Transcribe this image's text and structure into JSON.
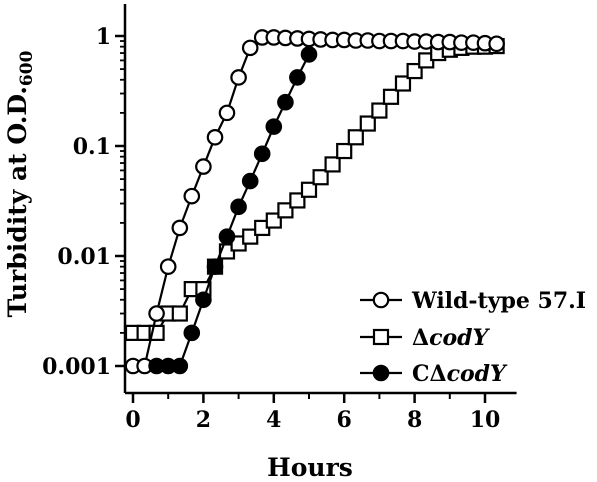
{
  "chart_data": {
    "type": "line",
    "xlabel": "Hours",
    "ylabel_main": "Turbidity at O.D.",
    "ylabel_sub": "600",
    "xlim": [
      0,
      10.5
    ],
    "ylim": [
      0.0007,
      1.5
    ],
    "yscale": "log",
    "grid": false,
    "legend_position": "bottom-right",
    "x_ticks": [
      0,
      2,
      4,
      6,
      8,
      10
    ],
    "x_tick_labels": [
      "0",
      "2",
      "4",
      "6",
      "8",
      "10"
    ],
    "y_ticks": [
      0.001,
      0.01,
      0.1,
      1
    ],
    "y_tick_labels": [
      "0.001",
      "0.01",
      "0.1",
      "1"
    ],
    "series": [
      {
        "name_prefix": "",
        "name_italic": "",
        "name_suffix": "Wild-type 57.I",
        "marker": "circle-open",
        "points": [
          [
            0,
            0.001
          ],
          [
            0.33,
            0.001
          ],
          [
            0.67,
            0.003
          ],
          [
            1.0,
            0.008
          ],
          [
            1.33,
            0.018
          ],
          [
            1.67,
            0.035
          ],
          [
            2.0,
            0.065
          ],
          [
            2.33,
            0.12
          ],
          [
            2.67,
            0.2
          ],
          [
            3.0,
            0.42
          ],
          [
            3.33,
            0.78
          ],
          [
            3.67,
            0.97
          ],
          [
            4.0,
            0.97
          ],
          [
            4.33,
            0.96
          ],
          [
            4.67,
            0.95
          ],
          [
            5.0,
            0.94
          ],
          [
            5.33,
            0.93
          ],
          [
            5.67,
            0.92
          ],
          [
            6.0,
            0.92
          ],
          [
            6.33,
            0.91
          ],
          [
            6.67,
            0.91
          ],
          [
            7.0,
            0.9
          ],
          [
            7.33,
            0.9
          ],
          [
            7.67,
            0.9
          ],
          [
            8.0,
            0.89
          ],
          [
            8.33,
            0.89
          ],
          [
            8.67,
            0.88
          ],
          [
            9.0,
            0.88
          ],
          [
            9.33,
            0.87
          ],
          [
            9.67,
            0.87
          ],
          [
            10.0,
            0.86
          ],
          [
            10.33,
            0.85
          ]
        ]
      },
      {
        "name_prefix": "Δ",
        "name_italic": "codY",
        "name_suffix": "",
        "marker": "square-open",
        "points": [
          [
            0,
            0.002
          ],
          [
            0.33,
            0.002
          ],
          [
            0.67,
            0.002
          ],
          [
            1.0,
            0.003
          ],
          [
            1.33,
            0.003
          ],
          [
            1.67,
            0.005
          ],
          [
            2.0,
            0.005
          ],
          [
            2.33,
            0.008
          ],
          [
            2.67,
            0.011
          ],
          [
            3.0,
            0.013
          ],
          [
            3.33,
            0.015
          ],
          [
            3.67,
            0.018
          ],
          [
            4.0,
            0.021
          ],
          [
            4.33,
            0.026
          ],
          [
            4.67,
            0.032
          ],
          [
            5.0,
            0.04
          ],
          [
            5.33,
            0.052
          ],
          [
            5.67,
            0.068
          ],
          [
            6.0,
            0.09
          ],
          [
            6.33,
            0.12
          ],
          [
            6.67,
            0.16
          ],
          [
            7.0,
            0.21
          ],
          [
            7.33,
            0.28
          ],
          [
            7.67,
            0.37
          ],
          [
            8.0,
            0.48
          ],
          [
            8.33,
            0.6
          ],
          [
            8.67,
            0.7
          ],
          [
            9.0,
            0.75
          ],
          [
            9.33,
            0.78
          ],
          [
            9.67,
            0.8
          ],
          [
            10.0,
            0.8
          ],
          [
            10.33,
            0.81
          ]
        ]
      },
      {
        "name_prefix": "CΔ",
        "name_italic": "codY",
        "name_suffix": "",
        "marker": "circle-filled",
        "points": [
          [
            0.67,
            0.001
          ],
          [
            1.0,
            0.001
          ],
          [
            1.33,
            0.001
          ],
          [
            1.67,
            0.002
          ],
          [
            2.0,
            0.004
          ],
          [
            2.33,
            0.008
          ],
          [
            2.67,
            0.015
          ],
          [
            3.0,
            0.028
          ],
          [
            3.33,
            0.048
          ],
          [
            3.67,
            0.085
          ],
          [
            4.0,
            0.15
          ],
          [
            4.33,
            0.25
          ],
          [
            4.67,
            0.42
          ],
          [
            5.0,
            0.68
          ]
        ]
      }
    ]
  }
}
